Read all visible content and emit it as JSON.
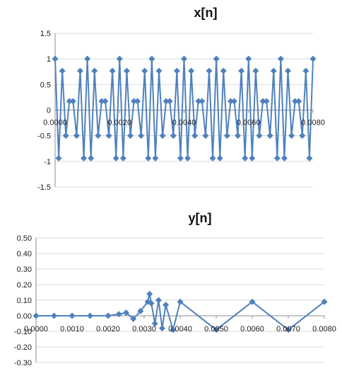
{
  "chart_data": [
    {
      "type": "scatter",
      "title": "x[n]",
      "xlabel": "",
      "ylabel": "",
      "xlim": [
        0,
        0.008
      ],
      "ylim": [
        -1.5,
        1.5
      ],
      "x_ticks": [
        "0.0000",
        "0.0020",
        "0.0040",
        "0.0060",
        "0.0080"
      ],
      "y_ticks": [
        "1.5",
        "1",
        "0.5",
        "0",
        "-0.5",
        "-1",
        "-1.5"
      ],
      "grid": true,
      "legend": "none",
      "series_color": "#4f81bd",
      "marker": "diamond",
      "connected": true,
      "series": [
        {
          "signal": "sinusoid",
          "amplitude": 1.0,
          "frequency_hz": 4000,
          "sample_rate_hz": 9000,
          "x_start": 0.0,
          "x_end": 0.008
        }
      ]
    },
    {
      "type": "scatter",
      "title": "y[n]",
      "xlabel": "",
      "ylabel": "",
      "xlim": [
        0,
        0.008
      ],
      "ylim": [
        -0.3,
        0.5
      ],
      "x_ticks": [
        "0.0000",
        "0.0010",
        "0.0020",
        "0.0030",
        "0.0040",
        "0.0050",
        "0.0060",
        "0.0070",
        "0.0080"
      ],
      "y_ticks": [
        "0.50",
        "0.40",
        "0.30",
        "0.20",
        "0.10",
        "0.00",
        "-0.10",
        "-0.20",
        "-0.30"
      ],
      "grid": true,
      "legend": "none",
      "series_color": "#4f81bd",
      "marker": "diamond",
      "connected": true,
      "series": [
        {
          "x": [
            0.0,
            0.0005,
            0.001,
            0.0015,
            0.002,
            0.0023,
            0.0025,
            0.0027,
            0.0029,
            0.0031,
            0.00315,
            0.0032,
            0.0033,
            0.0034,
            0.0035,
            0.0036,
            0.0038,
            0.004,
            0.005,
            0.006,
            0.007,
            0.008
          ],
          "y": [
            0.0,
            0.0,
            0.0,
            0.0,
            0.0,
            0.01,
            0.02,
            -0.02,
            0.03,
            0.09,
            0.14,
            0.08,
            -0.05,
            0.1,
            -0.08,
            0.07,
            -0.09,
            0.09,
            -0.09,
            0.09,
            -0.09,
            0.09
          ]
        }
      ]
    }
  ]
}
